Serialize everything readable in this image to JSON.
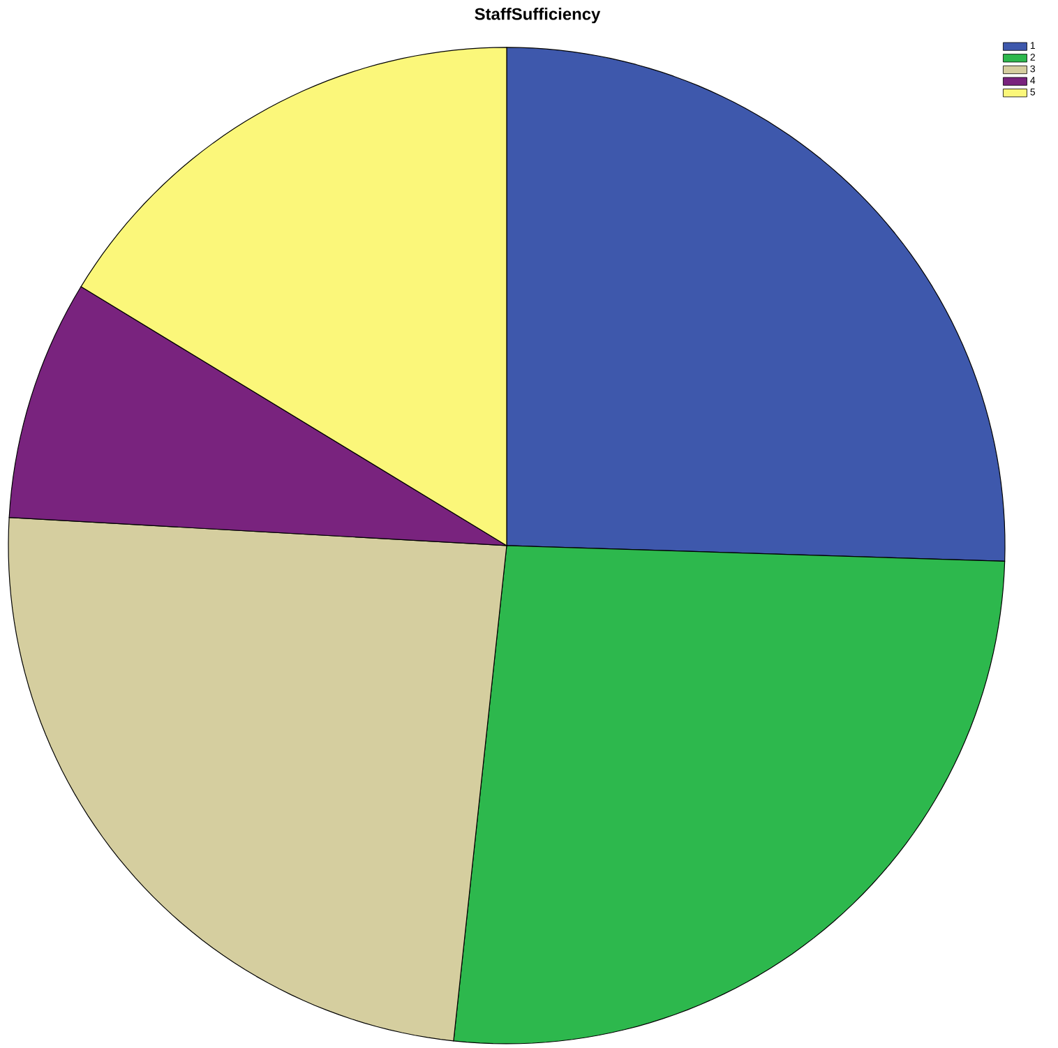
{
  "chart_data": {
    "type": "pie",
    "title": "StaffSufficiency",
    "categories": [
      "1",
      "2",
      "3",
      "4",
      "5"
    ],
    "values": [
      25.5,
      26.2,
      24.2,
      7.8,
      16.3
    ],
    "colors": [
      "#3e58ac",
      "#2db84d",
      "#d5ce9f",
      "#79237e",
      "#fbf77a"
    ],
    "legend": "top right"
  }
}
